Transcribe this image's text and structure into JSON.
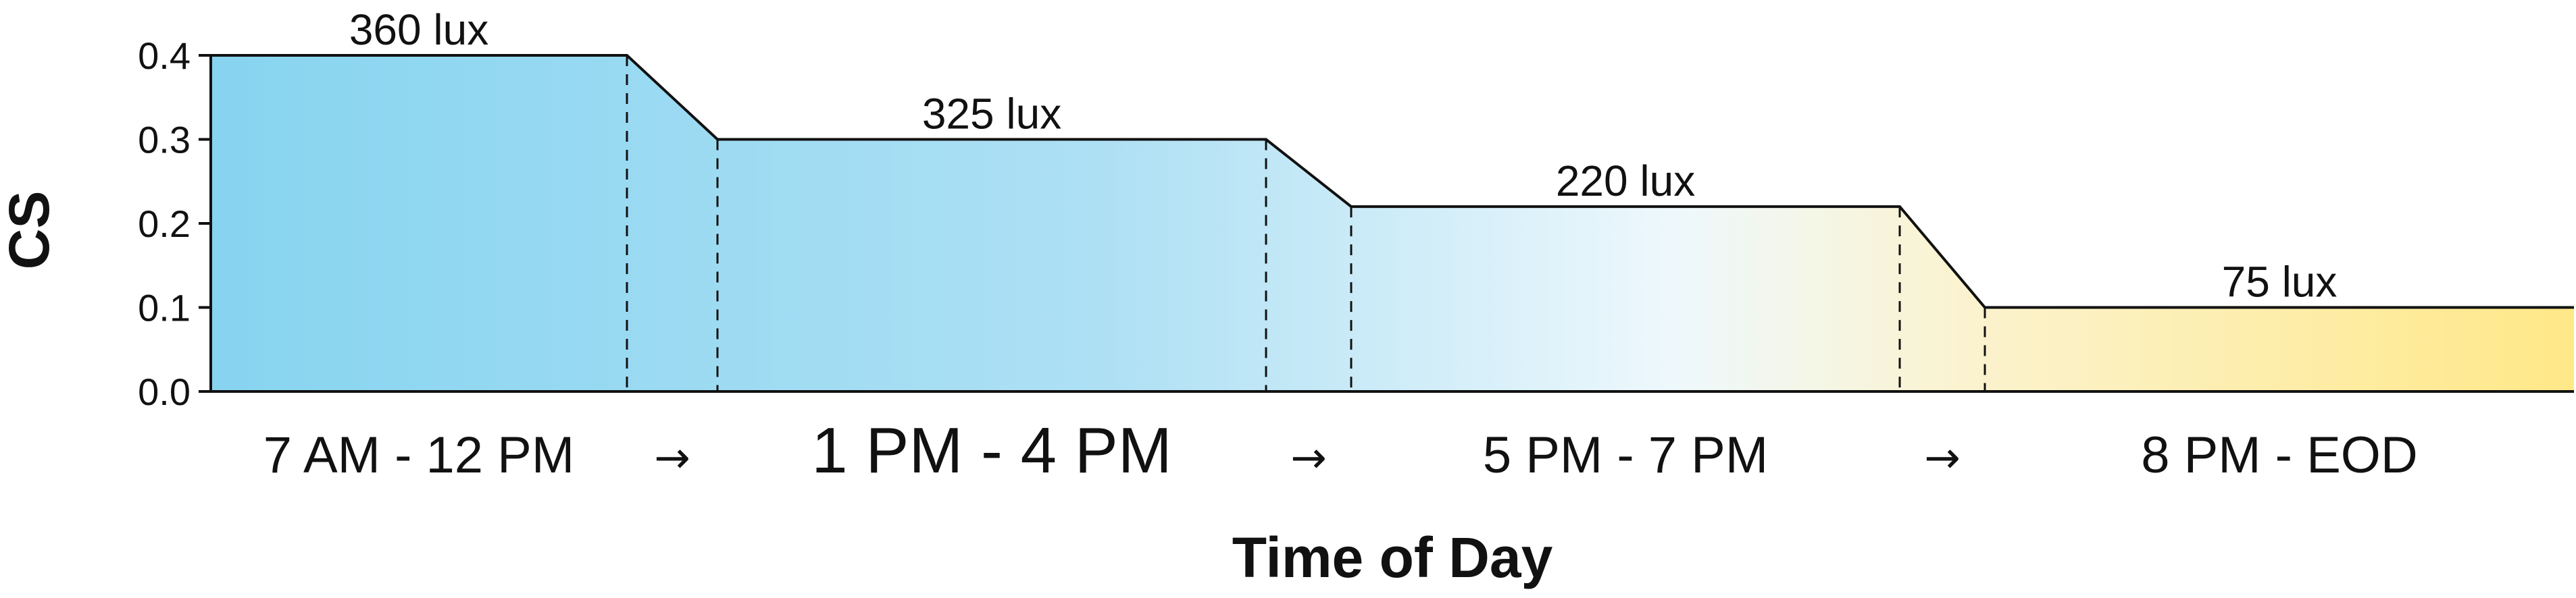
{
  "chart_data": {
    "type": "area",
    "xlabel": "Time of Day",
    "ylabel": "CS",
    "ylim": [
      0,
      0.4
    ],
    "yticks": [
      "0.0",
      "0.1",
      "0.2",
      "0.3",
      "0.4"
    ],
    "grid": false,
    "periods": [
      {
        "label": "7 AM - 12 PM",
        "cs": 0.4,
        "lux_label": "360 lux"
      },
      {
        "label": "1 PM - 4 PM",
        "cs": 0.3,
        "lux_label": "325 lux"
      },
      {
        "label": "5 PM - 7 PM",
        "cs": 0.22,
        "lux_label": "220 lux"
      },
      {
        "label": "8 PM - EOD",
        "cs": 0.1,
        "lux_label": "75 lux"
      }
    ],
    "transition_symbol": "→",
    "gradient_colors": [
      "#87d4f0",
      "#aee0f4",
      "#eef8fc",
      "#fbf3d0",
      "#ffe887"
    ]
  }
}
